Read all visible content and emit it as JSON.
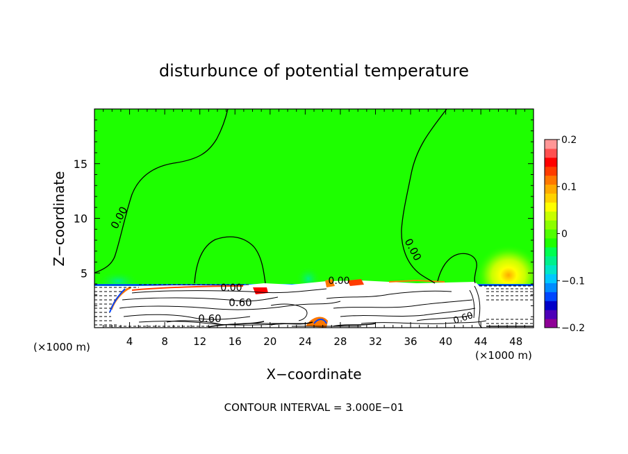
{
  "chart_data": {
    "type": "heatmap",
    "title": "disturbunce of potential temperature",
    "xlabel": "X−coordinate",
    "ylabel": "Z−coordinate",
    "x_unit_left": "(×1000 m)",
    "x_unit_right": "(×1000 m)",
    "xlim": [
      0,
      50
    ],
    "ylim": [
      0,
      20
    ],
    "x_ticks": [
      4,
      8,
      12,
      16,
      20,
      24,
      28,
      32,
      36,
      40,
      44,
      48
    ],
    "y_ticks": [
      5,
      10,
      15
    ],
    "colorbar": {
      "min": -0.2,
      "max": 0.2,
      "ticks": [
        0.2,
        0.1,
        0,
        -0.1,
        -0.2
      ],
      "tick_labels": [
        "0.2",
        "0.1",
        "0",
        "−0.1",
        "−0.2"
      ],
      "colors": [
        "#8e0096",
        "#4d00b8",
        "#0000c8",
        "#0046ff",
        "#008cff",
        "#00c8ff",
        "#00e6c8",
        "#00f08c",
        "#00ff50",
        "#1eff00",
        "#50ff00",
        "#8cff00",
        "#c8ff00",
        "#ffff00",
        "#ffd200",
        "#ffaa00",
        "#ff7800",
        "#ff3c00",
        "#ff0000",
        "#ff5050",
        "#ff9696"
      ]
    },
    "contour_labels": [
      {
        "text": "0.00",
        "x": 3.1,
        "z": 11.2
      },
      {
        "text": "0.00",
        "x": 35.5,
        "z": 7.2
      },
      {
        "text": "0.00",
        "x": 15.5,
        "z": 3.8
      },
      {
        "text": "0.00",
        "x": 28.5,
        "z": 4.2
      },
      {
        "text": "0.60",
        "x": 16.8,
        "z": 2.2
      },
      {
        "text": "0.60",
        "x": 13.0,
        "z": 0.8
      },
      {
        "text": "0.60",
        "x": 42.0,
        "z": 0.7
      }
    ],
    "annotation": "CONTOUR INTERVAL = 3.000E−01"
  }
}
